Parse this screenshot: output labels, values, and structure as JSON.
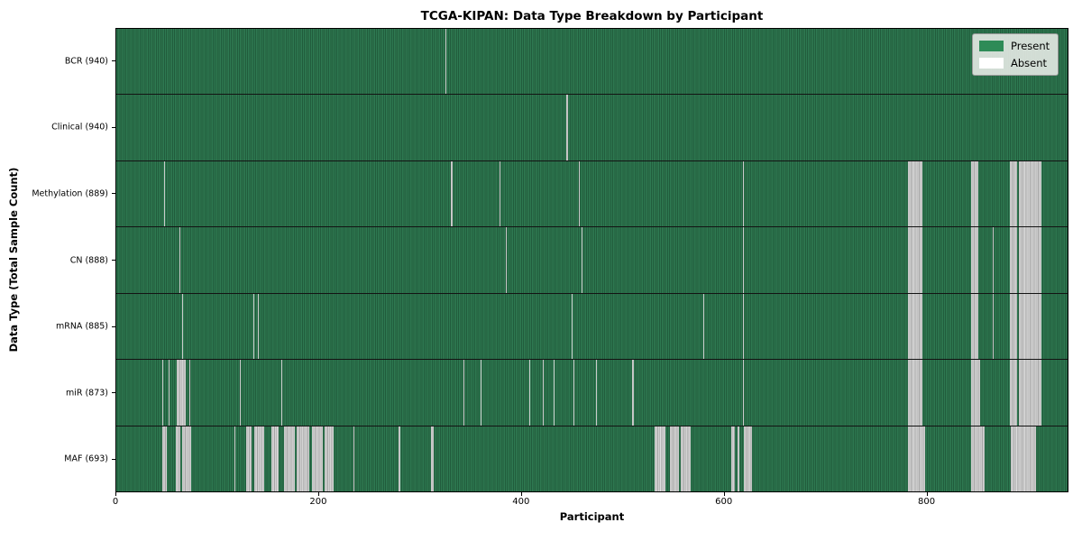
{
  "chart_data": {
    "type": "heatmap",
    "title": "TCGA-KIPAN: Data Type Breakdown by Participant",
    "xlabel": "Participant",
    "ylabel": "Data Type (Total Sample Count)",
    "x_range": [
      0,
      940
    ],
    "x_ticks": [
      0,
      200,
      400,
      600,
      800
    ],
    "grid": "row-separators",
    "legend_position": "upper right",
    "colors": {
      "present_fill": "#2e8b57",
      "present_stripe_light": "#2e7951",
      "present_stripe_dark": "#215c3c",
      "absent_fill": "#ffffff",
      "absent_stripe_light": "#cbcbcb",
      "absent_stripe_dark": "#a4a4a4"
    },
    "legend": [
      {
        "label": "Present",
        "color": "#2e8b57"
      },
      {
        "label": "Absent",
        "color": "#ffffff"
      }
    ],
    "rows": [
      {
        "data_type": "BCR",
        "label": "BCR (940)",
        "sample_count": 940,
        "absent_ranges": [
          [
            325,
            326
          ]
        ]
      },
      {
        "data_type": "Clinical",
        "label": "Clinical (940)",
        "sample_count": 940,
        "absent_ranges": [
          [
            445,
            446
          ]
        ]
      },
      {
        "data_type": "Methylation",
        "label": "Methylation (889)",
        "sample_count": 889,
        "absent_ranges": [
          [
            47,
            48
          ],
          [
            331,
            332
          ],
          [
            379,
            380
          ],
          [
            457,
            458
          ],
          [
            619,
            620
          ],
          [
            782,
            797
          ],
          [
            845,
            852
          ],
          [
            883,
            890
          ],
          [
            892,
            914
          ]
        ]
      },
      {
        "data_type": "CN",
        "label": "CN (888)",
        "sample_count": 888,
        "absent_ranges": [
          [
            62,
            63
          ],
          [
            385,
            386
          ],
          [
            460,
            461
          ],
          [
            619,
            620
          ],
          [
            782,
            797
          ],
          [
            845,
            852
          ],
          [
            866,
            867
          ],
          [
            883,
            890
          ],
          [
            892,
            914
          ]
        ]
      },
      {
        "data_type": "mRNA",
        "label": "mRNA (885)",
        "sample_count": 885,
        "absent_ranges": [
          [
            65,
            66
          ],
          [
            135,
            136
          ],
          [
            140,
            141
          ],
          [
            450,
            451
          ],
          [
            580,
            581
          ],
          [
            619,
            620
          ],
          [
            782,
            797
          ],
          [
            845,
            852
          ],
          [
            866,
            867
          ],
          [
            883,
            890
          ],
          [
            892,
            914
          ]
        ]
      },
      {
        "data_type": "miR",
        "label": "miR (873)",
        "sample_count": 873,
        "absent_ranges": [
          [
            45,
            46
          ],
          [
            52,
            53
          ],
          [
            60,
            69
          ],
          [
            72,
            73
          ],
          [
            122,
            123
          ],
          [
            163,
            164
          ],
          [
            343,
            344
          ],
          [
            360,
            361
          ],
          [
            408,
            409
          ],
          [
            421,
            422
          ],
          [
            432,
            433
          ],
          [
            452,
            453
          ],
          [
            474,
            475
          ],
          [
            510,
            511
          ],
          [
            619,
            620
          ],
          [
            782,
            797
          ],
          [
            845,
            854
          ],
          [
            883,
            890
          ],
          [
            892,
            914
          ]
        ]
      },
      {
        "data_type": "MAF",
        "label": "MAF (693)",
        "sample_count": 693,
        "absent_ranges": [
          [
            45,
            50
          ],
          [
            59,
            63
          ],
          [
            65,
            74
          ],
          [
            117,
            118
          ],
          [
            128,
            134
          ],
          [
            136,
            146
          ],
          [
            153,
            160
          ],
          [
            166,
            176
          ],
          [
            178,
            191
          ],
          [
            193,
            204
          ],
          [
            206,
            215
          ],
          [
            234,
            235
          ],
          [
            279,
            281
          ],
          [
            311,
            314
          ],
          [
            532,
            543
          ],
          [
            547,
            556
          ],
          [
            558,
            568
          ],
          [
            608,
            611
          ],
          [
            614,
            616
          ],
          [
            620,
            628
          ],
          [
            782,
            799
          ],
          [
            845,
            858
          ],
          [
            884,
            909
          ]
        ]
      }
    ]
  }
}
